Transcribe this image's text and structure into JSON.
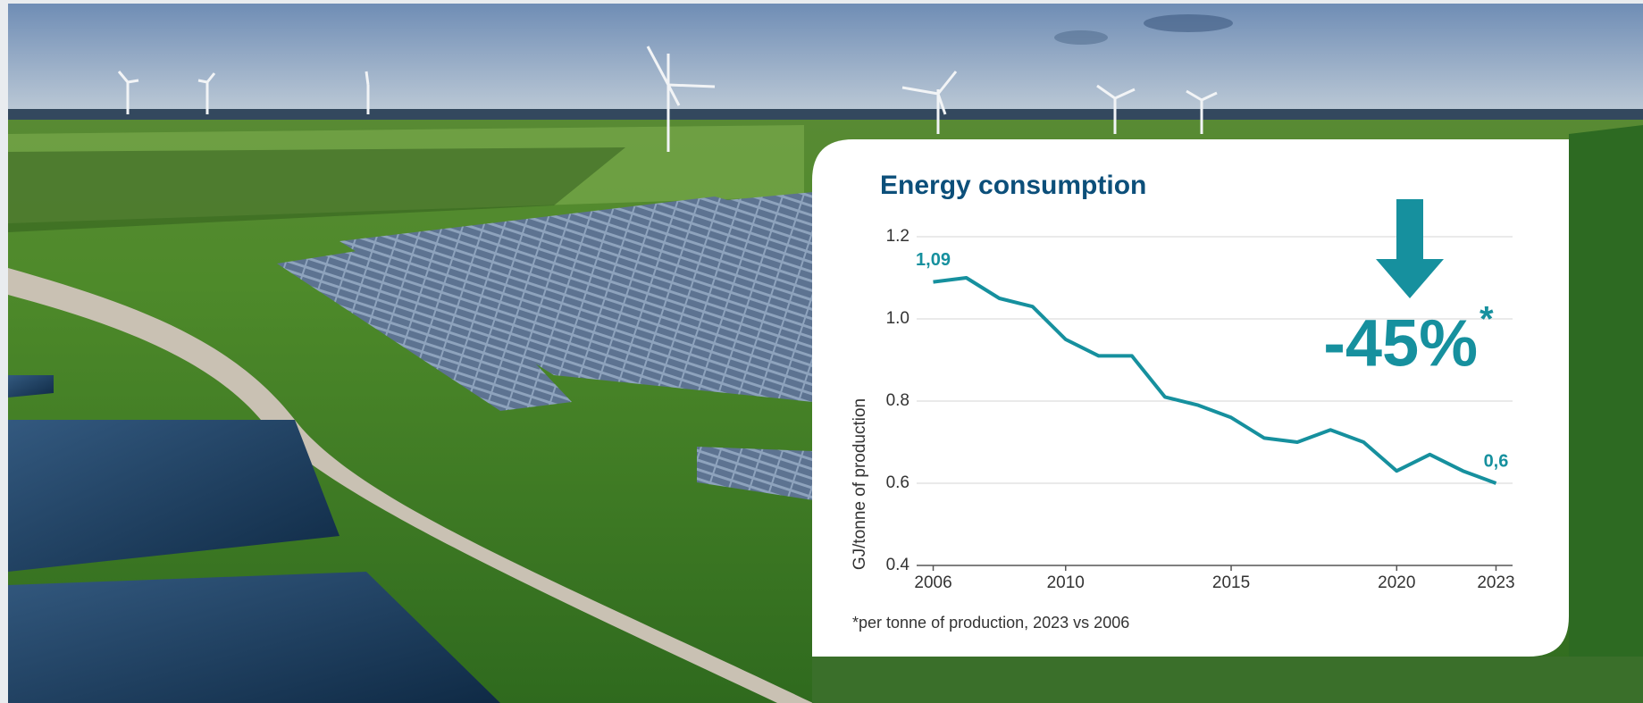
{
  "chart_data": {
    "type": "line",
    "title": "Energy consumption",
    "y_label": "GJ/tonne of production",
    "x": [
      2006,
      2007,
      2008,
      2009,
      2010,
      2011,
      2012,
      2013,
      2014,
      2015,
      2016,
      2017,
      2018,
      2019,
      2020,
      2021,
      2022,
      2023
    ],
    "values": [
      1.09,
      1.1,
      1.05,
      1.03,
      0.95,
      0.91,
      0.91,
      0.81,
      0.79,
      0.76,
      0.71,
      0.7,
      0.73,
      0.7,
      0.63,
      0.67,
      0.63,
      0.6
    ],
    "value_labels": [
      "1,09",
      null,
      null,
      null,
      null,
      null,
      null,
      null,
      null,
      null,
      null,
      null,
      null,
      null,
      null,
      null,
      null,
      "0,6"
    ],
    "color": "#16909e",
    "xlim": [
      2005.5,
      2023.5
    ],
    "xticks": [
      2006,
      2010,
      2015,
      2020,
      2023
    ],
    "ylim": [
      0.4,
      1.2
    ],
    "yticks": [
      0.4,
      0.6,
      0.8,
      {
        "value": 1,
        "label": "1.0"
      },
      1.2
    ],
    "grid": true,
    "annotation": {
      "text": "-45%",
      "mark": "*"
    },
    "footnote": "*per tonne of production, 2023 vs 2006"
  }
}
